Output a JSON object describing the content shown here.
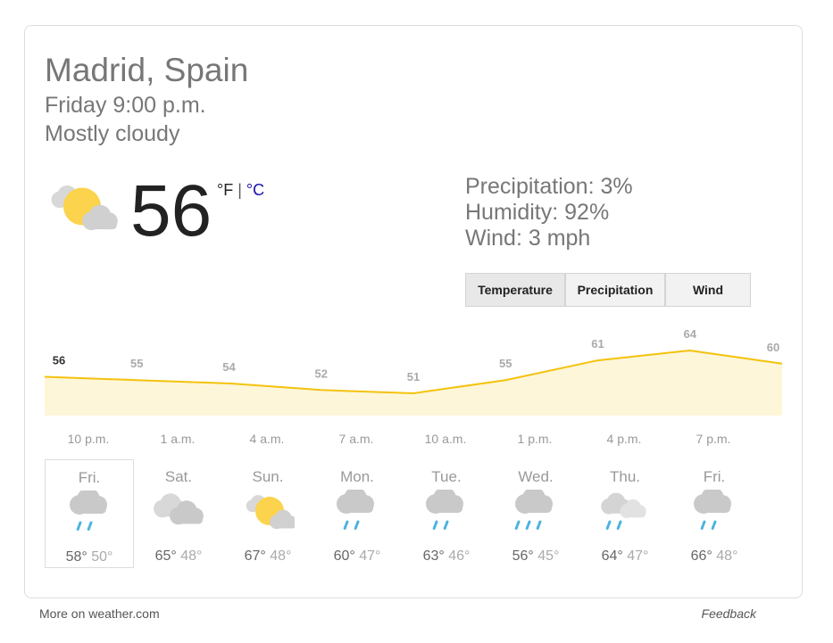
{
  "header": {
    "location": "Madrid, Spain",
    "time": "Friday 9:00 p.m.",
    "condition": "Mostly cloudy"
  },
  "current": {
    "temperature": "56",
    "unit_f": "°F",
    "separator": "|",
    "unit_c": "°C",
    "icon": "partly-cloudy"
  },
  "details": [
    "Precipitation: 3%",
    "Humidity: 92%",
    "Wind: 3 mph"
  ],
  "tabs": [
    "Temperature",
    "Precipitation",
    "Wind"
  ],
  "temperature_chart": {
    "values": [
      56,
      55,
      54,
      52,
      51,
      55,
      61,
      64,
      60
    ],
    "color": "#f4c20d",
    "fill": "#fef6d8"
  },
  "hour_labels": [
    "10 p.m.",
    "1 a.m.",
    "4 a.m.",
    "7 a.m.",
    "10 a.m.",
    "1 p.m.",
    "4 p.m.",
    "7 p.m."
  ],
  "forecast": [
    {
      "day": "Fri.",
      "high": "58°",
      "low": "50°",
      "icon": "rain"
    },
    {
      "day": "Sat.",
      "high": "65°",
      "low": "48°",
      "icon": "cloudy"
    },
    {
      "day": "Sun.",
      "high": "67°",
      "low": "48°",
      "icon": "partly-cloudy"
    },
    {
      "day": "Mon.",
      "high": "60°",
      "low": "47°",
      "icon": "rain"
    },
    {
      "day": "Tue.",
      "high": "63°",
      "low": "46°",
      "icon": "rain"
    },
    {
      "day": "Wed.",
      "high": "56°",
      "low": "45°",
      "icon": "heavy-rain"
    },
    {
      "day": "Thu.",
      "high": "64°",
      "low": "47°",
      "icon": "cloudy-rain"
    },
    {
      "day": "Fri.",
      "high": "66°",
      "low": "48°",
      "icon": "rain"
    }
  ],
  "footer": {
    "source": "More on weather.com",
    "feedback": "Feedback"
  }
}
